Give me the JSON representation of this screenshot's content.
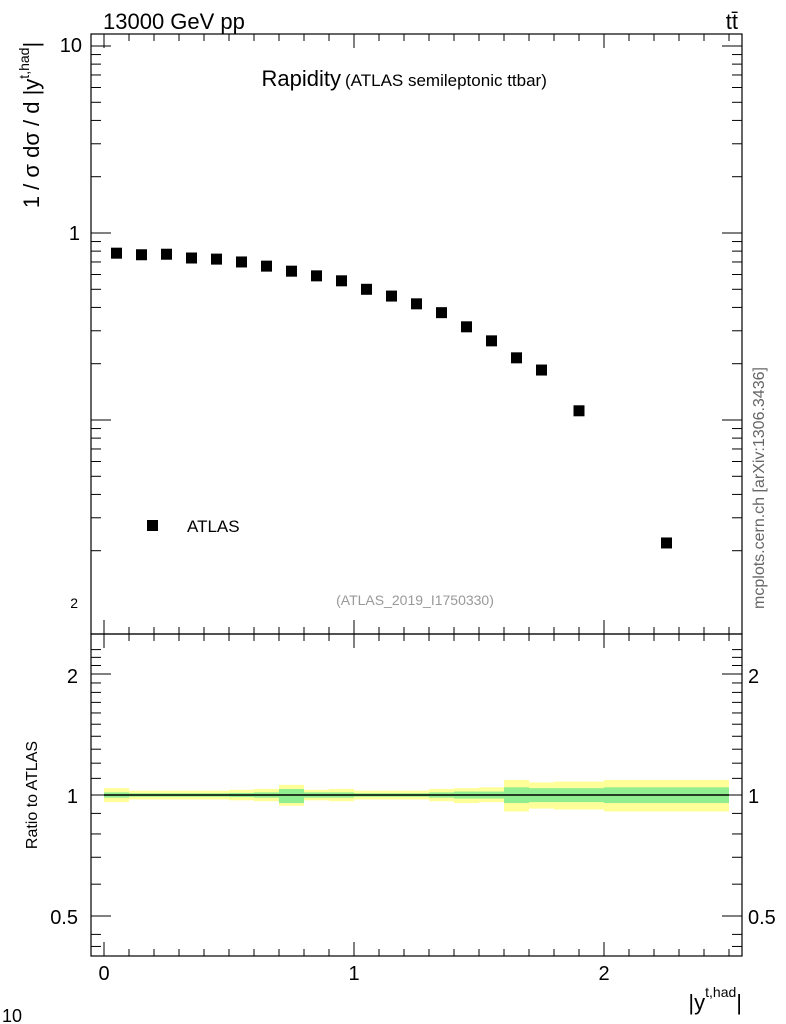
{
  "header": {
    "left": "13000 GeV pp",
    "right": "tt̄"
  },
  "main_plot": {
    "title": "Rapidity",
    "subtitle": "(ATLAS semileptonic ttbar)",
    "ylabel": "1 / σ dσ / d |y",
    "ylabel_sup": "t,had",
    "ylabel_close": "|",
    "legend_label": "ATLAS",
    "analysis_id": "(ATLAS_2019_I1750330)",
    "watermark": "mcplots.cern.ch [arXiv:1306.3436]",
    "ytick_labels": [
      "10",
      "1"
    ],
    "ytick_minor_label": "2",
    "bottom_corner_label": "10"
  },
  "ratio_plot": {
    "ylabel": "Ratio to ATLAS",
    "ytick_labels": [
      "2",
      "1",
      "0.5"
    ],
    "xtick_labels": [
      "0",
      "1",
      "2"
    ],
    "xlabel": "|y",
    "xlabel_sup": "t,had",
    "xlabel_close": "|"
  },
  "colors": {
    "marker": "#000000",
    "band_outer": "#ffff99",
    "band_inner": "#90ee90",
    "analysis_text": "#999999",
    "watermark_text": "#666666"
  },
  "chart_data": [
    {
      "type": "scatter",
      "title": "Rapidity",
      "subtitle": "(ATLAS semileptonic ttbar)",
      "xlabel": "|y^{t,had}|",
      "ylabel": "1 / σ dσ / d |y^{t,had}|",
      "yscale": "log",
      "xlim": [
        -0.05,
        2.55
      ],
      "ylim": [
        0.0185,
        12
      ],
      "legend": "top-left",
      "series": [
        {
          "name": "ATLAS",
          "x": [
            0.05,
            0.15,
            0.25,
            0.35,
            0.45,
            0.55,
            0.65,
            0.75,
            0.85,
            0.95,
            1.05,
            1.15,
            1.25,
            1.35,
            1.45,
            1.55,
            1.65,
            1.75,
            1.9,
            2.25
          ],
          "y": [
            0.78,
            0.765,
            0.77,
            0.735,
            0.725,
            0.7,
            0.665,
            0.625,
            0.59,
            0.555,
            0.5,
            0.46,
            0.418,
            0.375,
            0.315,
            0.265,
            0.215,
            0.185,
            0.112,
            0.022
          ]
        }
      ]
    },
    {
      "type": "area",
      "title": "",
      "xlabel": "|y^{t,had}|",
      "ylabel": "Ratio to ATLAS",
      "yscale": "log",
      "xlim": [
        -0.05,
        2.55
      ],
      "ylim": [
        0.4,
        2.4
      ],
      "reference_line": 1,
      "bins": [
        {
          "lo": 0.0,
          "hi": 0.1,
          "outer": [
            0.96,
            1.04
          ],
          "inner": [
            0.985,
            1.015
          ]
        },
        {
          "lo": 0.1,
          "hi": 0.2,
          "outer": [
            0.975,
            1.025
          ],
          "inner": [
            0.99,
            1.01
          ]
        },
        {
          "lo": 0.2,
          "hi": 0.3,
          "outer": [
            0.975,
            1.025
          ],
          "inner": [
            0.99,
            1.01
          ]
        },
        {
          "lo": 0.3,
          "hi": 0.4,
          "outer": [
            0.975,
            1.025
          ],
          "inner": [
            0.99,
            1.01
          ]
        },
        {
          "lo": 0.4,
          "hi": 0.5,
          "outer": [
            0.975,
            1.025
          ],
          "inner": [
            0.99,
            1.01
          ]
        },
        {
          "lo": 0.5,
          "hi": 0.6,
          "outer": [
            0.97,
            1.03
          ],
          "inner": [
            0.988,
            1.012
          ]
        },
        {
          "lo": 0.6,
          "hi": 0.7,
          "outer": [
            0.965,
            1.035
          ],
          "inner": [
            0.985,
            1.015
          ]
        },
        {
          "lo": 0.7,
          "hi": 0.8,
          "outer": [
            0.94,
            1.06
          ],
          "inner": [
            0.955,
            1.035
          ]
        },
        {
          "lo": 0.8,
          "hi": 0.9,
          "outer": [
            0.97,
            1.03
          ],
          "inner": [
            0.985,
            1.015
          ]
        },
        {
          "lo": 0.9,
          "hi": 1.0,
          "outer": [
            0.965,
            1.035
          ],
          "inner": [
            0.985,
            1.015
          ]
        },
        {
          "lo": 1.0,
          "hi": 1.1,
          "outer": [
            0.975,
            1.025
          ],
          "inner": [
            0.99,
            1.01
          ]
        },
        {
          "lo": 1.1,
          "hi": 1.2,
          "outer": [
            0.975,
            1.025
          ],
          "inner": [
            0.99,
            1.01
          ]
        },
        {
          "lo": 1.2,
          "hi": 1.3,
          "outer": [
            0.975,
            1.025
          ],
          "inner": [
            0.99,
            1.01
          ]
        },
        {
          "lo": 1.3,
          "hi": 1.4,
          "outer": [
            0.965,
            1.035
          ],
          "inner": [
            0.985,
            1.015
          ]
        },
        {
          "lo": 1.4,
          "hi": 1.5,
          "outer": [
            0.955,
            1.04
          ],
          "inner": [
            0.98,
            1.02
          ]
        },
        {
          "lo": 1.5,
          "hi": 1.6,
          "outer": [
            0.96,
            1.045
          ],
          "inner": [
            0.98,
            1.02
          ]
        },
        {
          "lo": 1.6,
          "hi": 1.7,
          "outer": [
            0.91,
            1.09
          ],
          "inner": [
            0.955,
            1.045
          ]
        },
        {
          "lo": 1.7,
          "hi": 1.8,
          "outer": [
            0.925,
            1.075
          ],
          "inner": [
            0.96,
            1.04
          ]
        },
        {
          "lo": 1.8,
          "hi": 2.0,
          "outer": [
            0.92,
            1.08
          ],
          "inner": [
            0.96,
            1.04
          ]
        },
        {
          "lo": 2.0,
          "hi": 2.5,
          "outer": [
            0.91,
            1.09
          ],
          "inner": [
            0.955,
            1.045
          ]
        }
      ]
    }
  ]
}
